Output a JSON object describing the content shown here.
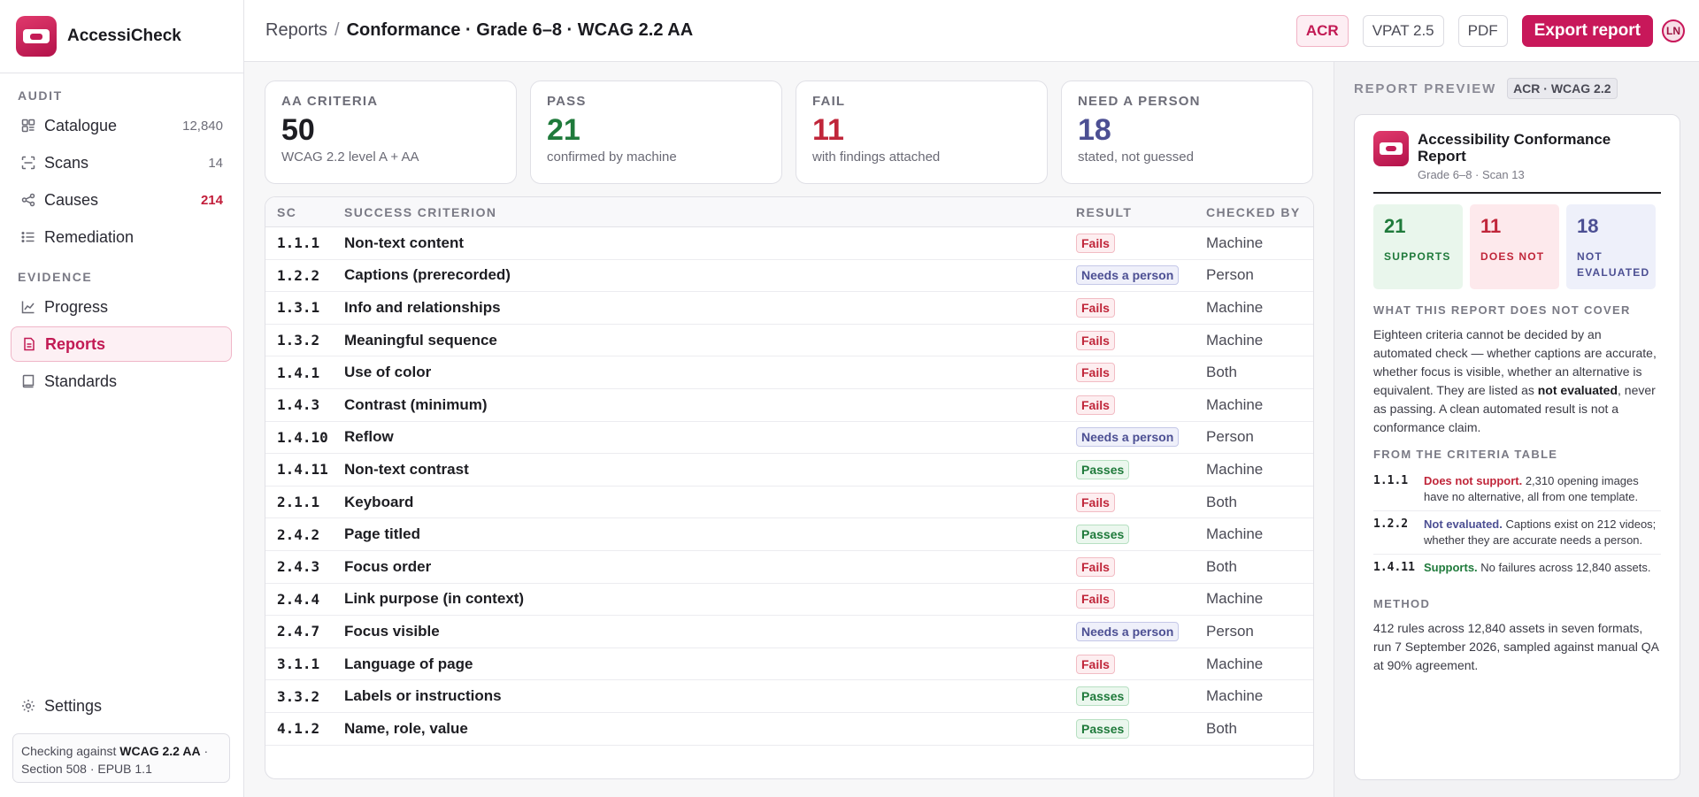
{
  "app": {
    "name": "AccessiCheck"
  },
  "sidebar": {
    "audit_label": "AUDIT",
    "evidence_label": "EVIDENCE",
    "items": [
      {
        "label": "Catalogue",
        "count": "12,840",
        "icon": "catalogue-icon"
      },
      {
        "label": "Scans",
        "count": "14",
        "icon": "scan-icon"
      },
      {
        "label": "Causes",
        "count": "214",
        "icon": "causes-icon"
      },
      {
        "label": "Remediation",
        "count": "",
        "icon": "list-icon"
      },
      {
        "label": "Progress",
        "count": "",
        "icon": "chart-icon"
      },
      {
        "label": "Reports",
        "count": "",
        "icon": "document-icon"
      },
      {
        "label": "Standards",
        "count": "",
        "icon": "book-icon"
      }
    ],
    "settings_label": "Settings",
    "footnote": {
      "prefix": "Checking against ",
      "standard": "WCAG 2.2 AA",
      "suffix": " · Section 508 · EPUB 1.1"
    }
  },
  "header": {
    "crumb_root": "Reports",
    "crumb_sep": "/",
    "crumb_current": "Conformance · Grade 6–8 · WCAG 2.2 AA",
    "chips": [
      "ACR",
      "VPAT 2.5",
      "PDF"
    ],
    "export_label": "Export report",
    "avatar_initials": "LN"
  },
  "stats": [
    {
      "label": "AA CRITERIA",
      "value": "50",
      "sub": "WCAG 2.2 level A + AA",
      "color": "#1d1d22"
    },
    {
      "label": "PASS",
      "value": "21",
      "sub": "confirmed by machine",
      "color": "#1f7a3b"
    },
    {
      "label": "FAIL",
      "value": "11",
      "sub": "with findings attached",
      "color": "#c0263a"
    },
    {
      "label": "NEED A PERSON",
      "value": "18",
      "sub": "stated, not guessed",
      "color": "#4c4f93"
    }
  ],
  "table": {
    "headers": {
      "sc": "SC",
      "name": "SUCCESS CRITERION",
      "result": "RESULT",
      "by": "CHECKED BY"
    },
    "rows": [
      {
        "sc": "1.1.1",
        "name": "Non-text content",
        "result": "Fails",
        "by": "Machine"
      },
      {
        "sc": "1.2.2",
        "name": "Captions (prerecorded)",
        "result": "Needs a person",
        "by": "Person"
      },
      {
        "sc": "1.3.1",
        "name": "Info and relationships",
        "result": "Fails",
        "by": "Machine"
      },
      {
        "sc": "1.3.2",
        "name": "Meaningful sequence",
        "result": "Fails",
        "by": "Machine"
      },
      {
        "sc": "1.4.1",
        "name": "Use of color",
        "result": "Fails",
        "by": "Both"
      },
      {
        "sc": "1.4.3",
        "name": "Contrast (minimum)",
        "result": "Fails",
        "by": "Machine"
      },
      {
        "sc": "1.4.10",
        "name": "Reflow",
        "result": "Needs a person",
        "by": "Person"
      },
      {
        "sc": "1.4.11",
        "name": "Non-text contrast",
        "result": "Passes",
        "by": "Machine"
      },
      {
        "sc": "2.1.1",
        "name": "Keyboard",
        "result": "Fails",
        "by": "Both"
      },
      {
        "sc": "2.4.2",
        "name": "Page titled",
        "result": "Passes",
        "by": "Machine"
      },
      {
        "sc": "2.4.3",
        "name": "Focus order",
        "result": "Fails",
        "by": "Both"
      },
      {
        "sc": "2.4.4",
        "name": "Link purpose (in context)",
        "result": "Fails",
        "by": "Machine"
      },
      {
        "sc": "2.4.7",
        "name": "Focus visible",
        "result": "Needs a person",
        "by": "Person"
      },
      {
        "sc": "3.1.1",
        "name": "Language of page",
        "result": "Fails",
        "by": "Machine"
      },
      {
        "sc": "3.3.2",
        "name": "Labels or instructions",
        "result": "Passes",
        "by": "Machine"
      },
      {
        "sc": "4.1.2",
        "name": "Name, role, value",
        "result": "Passes",
        "by": "Both"
      }
    ]
  },
  "preview": {
    "title": "REPORT PREVIEW",
    "tag": "ACR · WCAG 2.2",
    "doc_title": "Accessibility Conformance Report",
    "doc_sub": "Grade 6–8 · Scan 13",
    "tiles": [
      {
        "value": "21",
        "label": "SUPPORTS"
      },
      {
        "value": "11",
        "label": "DOES NOT"
      },
      {
        "value": "18",
        "label": "NOT EVALUATED"
      }
    ],
    "not_cover_heading": "WHAT THIS REPORT DOES NOT COVER",
    "not_cover_text_1": "Eighteen criteria cannot be decided by an automated check — whether captions are accurate, whether focus is visible, whether an alternative is equivalent. They are listed as ",
    "not_cover_bold": "not evaluated",
    "not_cover_text_2": ", never as passing. A clean automated result is not a conformance claim.",
    "criteria_heading": "FROM THE CRITERIA TABLE",
    "criteria": [
      {
        "sc": "1.1.1",
        "key": "Does not support.",
        "text": " 2,310 opening images have no alternative, all from one template."
      },
      {
        "sc": "1.2.2",
        "key": "Not evaluated.",
        "text": " Captions exist on 212 videos; whether they are accurate needs a person."
      },
      {
        "sc": "1.4.11",
        "key": "Supports.",
        "text": " No failures across 12,840 assets."
      }
    ],
    "method_heading": "METHOD",
    "method_text": "412 rules across 12,840 assets in seven formats, run 7 September 2026, sampled against manual QA at 90% agreement."
  }
}
